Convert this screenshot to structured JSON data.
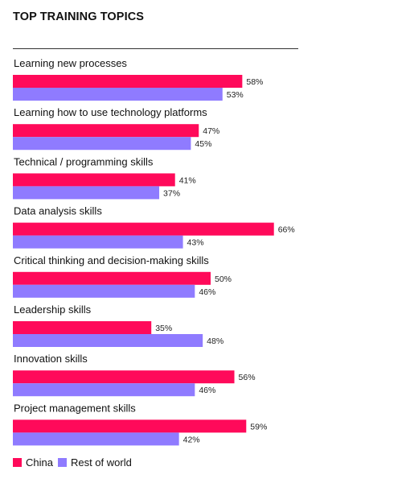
{
  "chart_data": {
    "type": "bar",
    "orientation": "horizontal",
    "title": "TOP TRAINING TOPICS",
    "categories": [
      "Learning new processes",
      "Learning how to use technology platforms",
      "Technical / programming skills",
      "Data analysis skills",
      "Critical thinking and decision-making skills",
      "Leadership skills",
      "Innovation skills",
      "Project management skills"
    ],
    "series": [
      {
        "name": "China",
        "color": "#ff0a5a",
        "values": [
          58,
          47,
          41,
          66,
          50,
          35,
          56,
          59
        ],
        "labels": [
          "58%",
          "47%",
          "41%",
          "66%",
          "50%",
          "35%",
          "56%",
          "59%"
        ]
      },
      {
        "name": "Rest of world",
        "color": "#8f7bff",
        "values": [
          53,
          45,
          37,
          43,
          46,
          48,
          46,
          42
        ],
        "labels": [
          "53%",
          "45%",
          "37%",
          "43%",
          "46%",
          "48%",
          "46%",
          "42%"
        ]
      }
    ],
    "unit": "%",
    "xlim": [
      0,
      100
    ],
    "grid": false,
    "legend_position": "bottom-left"
  }
}
